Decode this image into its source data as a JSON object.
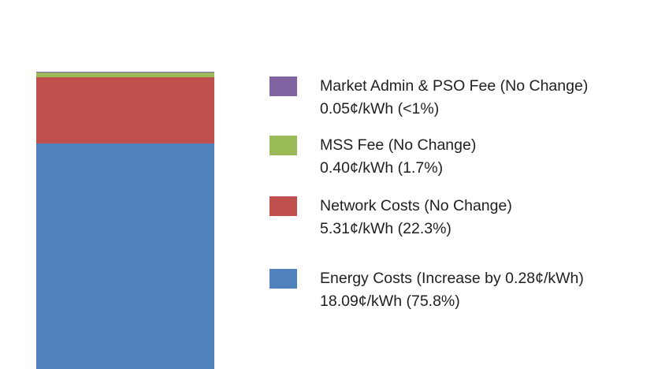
{
  "chart_data": {
    "type": "bar",
    "stacked": true,
    "title": "",
    "xlabel": "",
    "ylabel": "",
    "ylim": [
      0,
      23.85
    ],
    "y_max_visible": 23.85,
    "legend_position": "right",
    "series": [
      {
        "name": "Energy Costs (Increase by 0.28¢/kWh)",
        "value": 18.09,
        "value_label": "18.09¢/kWh (75.8%)",
        "color": "#4f81bd"
      },
      {
        "name": "Network Costs (No Change)",
        "value": 5.31,
        "value_label": "5.31¢/kWh (22.3%)",
        "color": "#c0504d"
      },
      {
        "name": "MSS Fee (No Change)",
        "value": 0.4,
        "value_label": "0.40¢/kWh (1.7%)",
        "color": "#9bbb59"
      },
      {
        "name": "Market Admin & PSO Fee (No Change)",
        "value": 0.05,
        "value_label": "0.05¢/kWh (<1%)",
        "color": "#8064a2"
      }
    ]
  }
}
